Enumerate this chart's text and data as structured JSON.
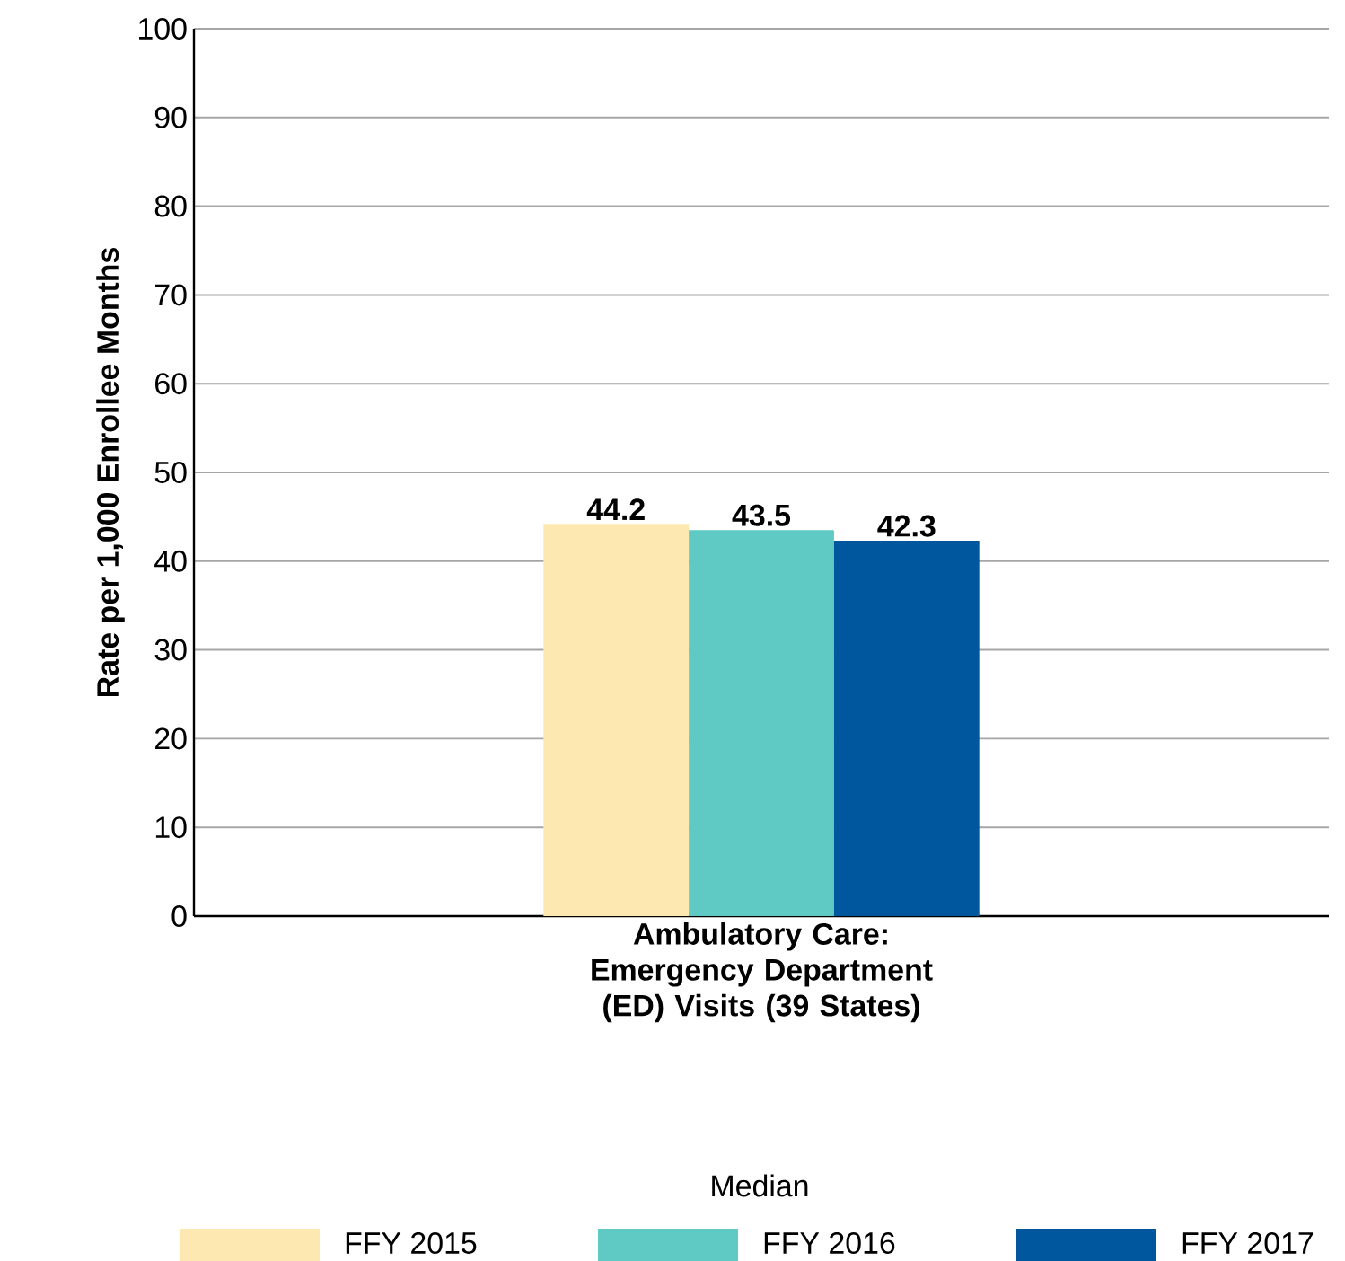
{
  "chart_data": {
    "type": "bar",
    "ylabel": "Rate per 1,000 Enrollee Months",
    "categories": [
      "Ambulatory Care: Emergency Department (ED) Visits (39 States)"
    ],
    "series": [
      {
        "name": "FFY 2015",
        "color": "#fde8b2",
        "values": [
          44.2
        ]
      },
      {
        "name": "FFY 2016",
        "color": "#5fc9c4",
        "values": [
          43.5
        ]
      },
      {
        "name": "FFY 2017",
        "color": "#00579d",
        "values": [
          42.3
        ]
      }
    ],
    "ylim": [
      0,
      100
    ],
    "yticks": [
      0,
      10,
      20,
      30,
      40,
      50,
      60,
      70,
      80,
      90,
      100
    ],
    "grid": "y",
    "data_labels": true,
    "legend": "bottom",
    "legend_title": "Median"
  }
}
